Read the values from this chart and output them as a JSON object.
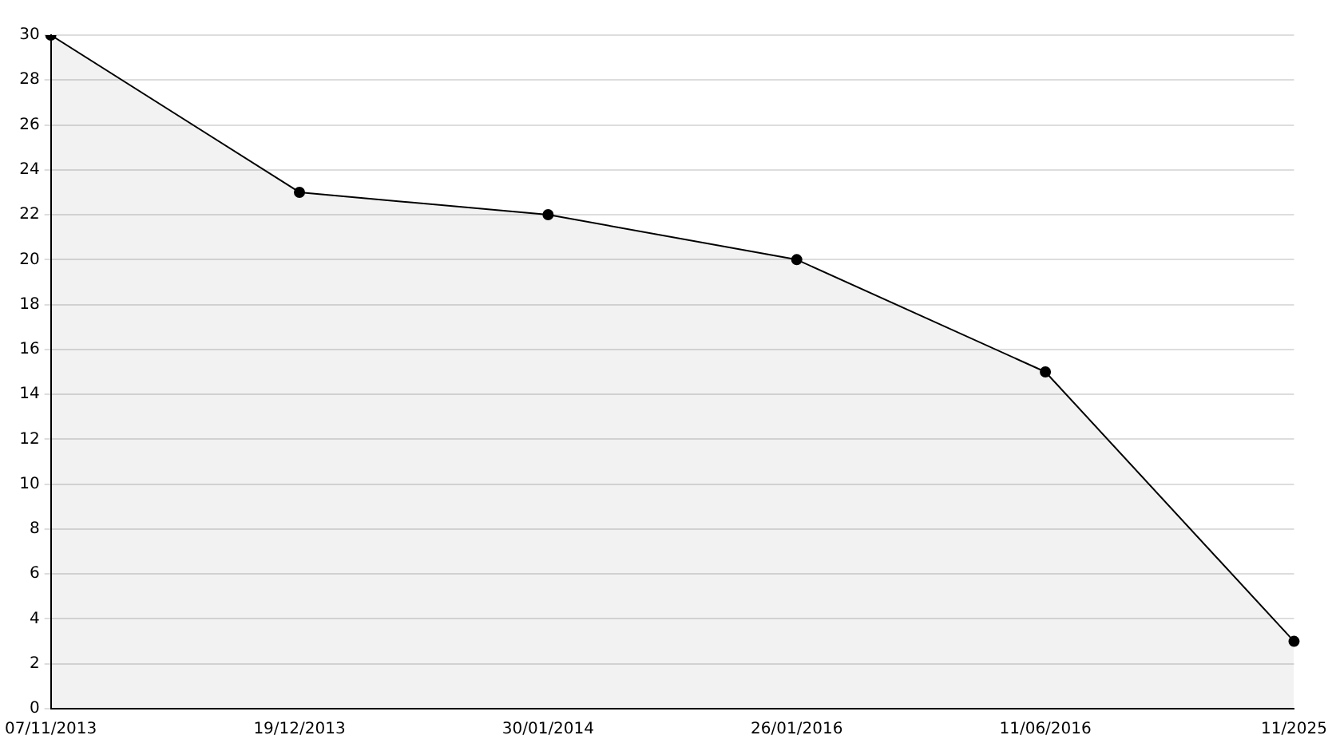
{
  "chart_data": {
    "type": "area",
    "categories": [
      "07/11/2013",
      "19/12/2013",
      "30/01/2014",
      "26/01/2016",
      "11/06/2016",
      "11/2025"
    ],
    "series": [
      {
        "color": "#000000",
        "values": [
          30,
          23,
          22,
          20,
          15,
          3
        ]
      }
    ],
    "ylim": [
      0,
      30
    ],
    "yticks": [
      0,
      2,
      4,
      6,
      8,
      10,
      12,
      14,
      16,
      18,
      20,
      22,
      24,
      26,
      28,
      30
    ],
    "grid": "y",
    "legend": false,
    "marker": "circle",
    "line_style": "solid"
  }
}
